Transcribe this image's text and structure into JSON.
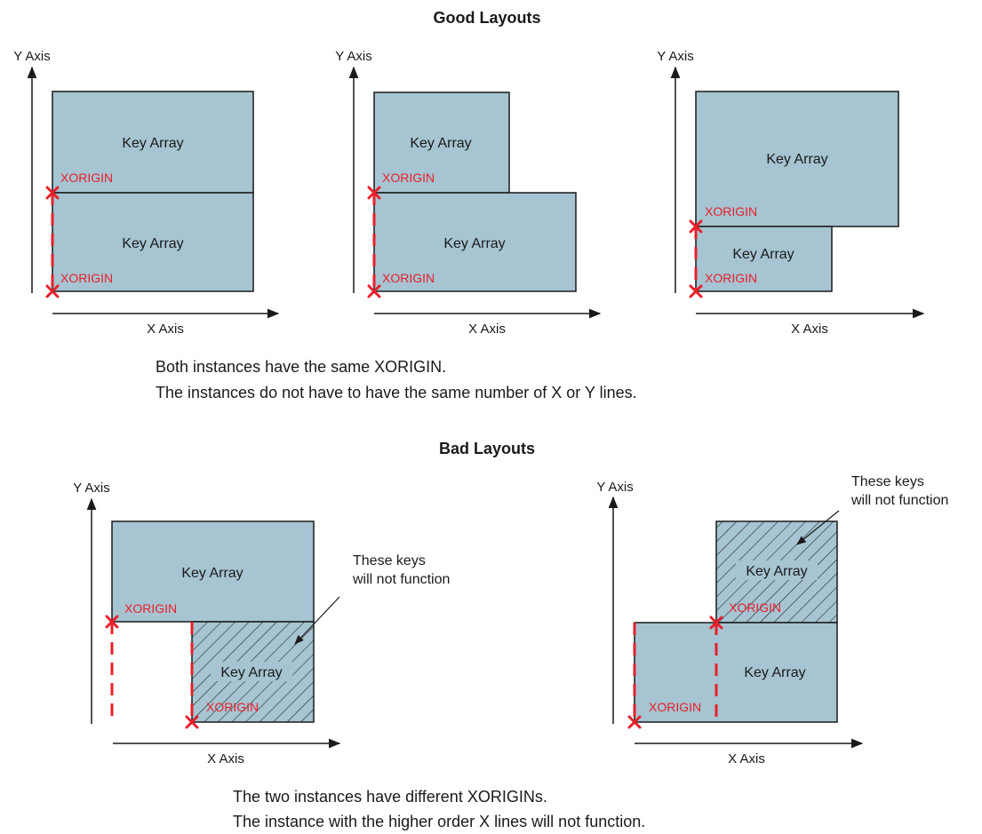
{
  "good_section": {
    "title": "Good Layouts",
    "caption_line1": "Both instances have the same XORIGIN.",
    "caption_line2": "The instances do not have to have the same number of X or Y lines."
  },
  "bad_section": {
    "title": "Bad Layouts",
    "caption_line1": "The two instances have different XORIGINs.",
    "caption_line2": "The instance with the higher order X lines will not function."
  },
  "labels": {
    "y_axis": "Y Axis",
    "x_axis": "X Axis",
    "block": "Key Array",
    "origin": "XORIGIN",
    "note_line1": "These keys",
    "note_line2": "will not function"
  },
  "colors": {
    "block_fill": "#a6c4d2",
    "origin_red": "#e8202a",
    "outline": "#1a1a1a"
  }
}
